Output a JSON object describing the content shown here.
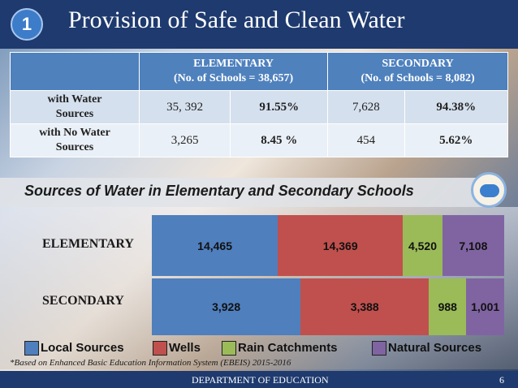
{
  "slide": {
    "number_badge": "1",
    "title": "Provision of Safe and Clean Water",
    "footer": "DEPARTMENT OF EDUCATION",
    "page_number": "6",
    "footnote": "*Based on Enhanced Basic Education Information System (EBEIS) 2015-2016"
  },
  "table": {
    "headers": {
      "elementary_line1": "ELEMENTARY",
      "elementary_line2": "(No. of Schools = 38,657)",
      "secondary_line1": "SECONDARY",
      "secondary_line2": "(No. of Schools = 8,082)"
    },
    "rows": [
      {
        "label_line1": "with Water",
        "label_line2": "Sources",
        "elem_count": "35, 392",
        "elem_pct": "91.55%",
        "sec_count": "7,628",
        "sec_pct": "94.38%"
      },
      {
        "label_line1": "with No Water",
        "label_line2": "Sources",
        "elem_count": "3,265",
        "elem_pct": "8.45 %",
        "sec_count": "454",
        "sec_pct": "5.62%"
      }
    ]
  },
  "chart_data": {
    "type": "bar",
    "orientation": "horizontal",
    "stacked": true,
    "title": "Sources of Water in Elementary and Secondary Schools",
    "categories": [
      "ELEMENTARY",
      "SECONDARY"
    ],
    "series": [
      {
        "name": "Local Sources",
        "color": "#4f7fbd",
        "values": [
          14465,
          3928
        ],
        "labels": [
          "14,465",
          "3,928"
        ]
      },
      {
        "name": "Wells",
        "color": "#c0504d",
        "values": [
          14369,
          3388
        ],
        "labels": [
          "14,369",
          "3,388"
        ]
      },
      {
        "name": "Rain Catchments",
        "color": "#9bbb59",
        "values": [
          4520,
          988
        ],
        "labels": [
          "4,520",
          "988"
        ]
      },
      {
        "name": "Natural Sources",
        "color": "#8064a2",
        "values": [
          7108,
          1001
        ],
        "labels": [
          "7,108",
          "1,001"
        ]
      }
    ],
    "legend_position": "bottom"
  }
}
